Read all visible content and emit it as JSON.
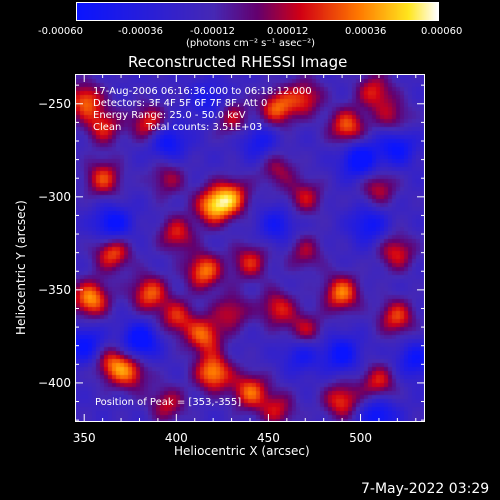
{
  "colorbar": {
    "ticks": [
      "-0.00060",
      "-0.00036",
      "-0.00012",
      "0.00012",
      "0.00036",
      "0.00060"
    ],
    "unit_label": "(photons cm⁻² s⁻¹ asec⁻²)"
  },
  "chart_data": {
    "type": "heatmap",
    "title": "Reconstructed RHESSI Image",
    "xlabel": "Heliocentric X (arcsec)",
    "ylabel": "Heliocentric Y (arcsec)",
    "xlim": [
      345,
      535
    ],
    "ylim": [
      -421,
      -234
    ],
    "xticks": [
      350,
      400,
      450,
      500
    ],
    "yticks": [
      -250,
      -300,
      -350,
      -400
    ],
    "color_range": [
      -0.0006,
      0.0006
    ],
    "colormap": "blue-purple-red-orange-yellow-white",
    "info_lines": [
      "17-Aug-2006 06:16:36.000 to 06:18:12.000",
      "Detectors: 3F 4F 5F 6F 7F 8F, Att 0",
      "Energy Range: 25.0 - 50.0 keV",
      "Clean",
      "Total counts: 3.51E+03"
    ],
    "peak_label": "Position of Peak = [353,-355]",
    "peak": [
      353,
      -355
    ],
    "blobs": [
      {
        "x": 350,
        "y": -248,
        "v": 0.0005
      },
      {
        "x": 360,
        "y": -262,
        "v": 0.0004
      },
      {
        "x": 385,
        "y": -260,
        "v": 0.00045
      },
      {
        "x": 430,
        "y": -257,
        "v": 0.00035
      },
      {
        "x": 455,
        "y": -252,
        "v": 0.0005
      },
      {
        "x": 470,
        "y": -246,
        "v": 0.0004
      },
      {
        "x": 508,
        "y": -243,
        "v": 0.0004
      },
      {
        "x": 493,
        "y": -262,
        "v": 0.0005
      },
      {
        "x": 518,
        "y": -257,
        "v": 0.0003
      },
      {
        "x": 360,
        "y": -290,
        "v": 0.00045
      },
      {
        "x": 395,
        "y": -290,
        "v": 0.0003
      },
      {
        "x": 420,
        "y": -305,
        "v": 0.0006
      },
      {
        "x": 430,
        "y": -300,
        "v": 0.0005
      },
      {
        "x": 455,
        "y": -285,
        "v": 0.0003
      },
      {
        "x": 470,
        "y": -300,
        "v": 0.00035
      },
      {
        "x": 510,
        "y": -295,
        "v": 0.00035
      },
      {
        "x": 365,
        "y": -330,
        "v": 0.0005
      },
      {
        "x": 400,
        "y": -320,
        "v": 0.0004
      },
      {
        "x": 415,
        "y": -340,
        "v": 0.00055
      },
      {
        "x": 440,
        "y": -335,
        "v": 0.0004
      },
      {
        "x": 470,
        "y": -330,
        "v": 0.0003
      },
      {
        "x": 490,
        "y": -352,
        "v": 0.00055
      },
      {
        "x": 520,
        "y": -330,
        "v": 0.0004
      },
      {
        "x": 353,
        "y": -355,
        "v": 0.0006
      },
      {
        "x": 385,
        "y": -352,
        "v": 0.0005
      },
      {
        "x": 400,
        "y": -365,
        "v": 0.0004
      },
      {
        "x": 415,
        "y": -375,
        "v": 0.0005
      },
      {
        "x": 430,
        "y": -362,
        "v": 0.00035
      },
      {
        "x": 455,
        "y": -360,
        "v": 0.0004
      },
      {
        "x": 470,
        "y": -372,
        "v": 0.00035
      },
      {
        "x": 520,
        "y": -365,
        "v": 0.00045
      },
      {
        "x": 365,
        "y": -390,
        "v": 0.00045
      },
      {
        "x": 375,
        "y": -395,
        "v": 0.0004
      },
      {
        "x": 420,
        "y": -395,
        "v": 0.0006
      },
      {
        "x": 440,
        "y": -405,
        "v": 0.0005
      },
      {
        "x": 490,
        "y": -410,
        "v": 0.00045
      },
      {
        "x": 510,
        "y": -400,
        "v": 0.0004
      },
      {
        "x": 455,
        "y": -415,
        "v": 0.00035
      },
      {
        "x": 395,
        "y": -412,
        "v": 0.00035
      },
      {
        "x": 365,
        "y": -315,
        "v": -0.00045
      },
      {
        "x": 395,
        "y": -270,
        "v": -0.0004
      },
      {
        "x": 445,
        "y": -270,
        "v": -0.0003
      },
      {
        "x": 500,
        "y": -280,
        "v": -0.0005
      },
      {
        "x": 520,
        "y": -273,
        "v": -0.0004
      },
      {
        "x": 380,
        "y": -378,
        "v": -0.0005
      },
      {
        "x": 350,
        "y": -380,
        "v": -0.0004
      },
      {
        "x": 505,
        "y": -315,
        "v": -0.00035
      },
      {
        "x": 490,
        "y": -385,
        "v": -0.0004
      },
      {
        "x": 468,
        "y": -385,
        "v": -0.0003
      },
      {
        "x": 530,
        "y": -388,
        "v": -0.00035
      },
      {
        "x": 418,
        "y": -248,
        "v": -0.0003
      },
      {
        "x": 455,
        "y": -315,
        "v": -0.0003
      },
      {
        "x": 510,
        "y": -418,
        "v": -0.0004
      }
    ]
  },
  "timestamp": "7-May-2022 03:29"
}
